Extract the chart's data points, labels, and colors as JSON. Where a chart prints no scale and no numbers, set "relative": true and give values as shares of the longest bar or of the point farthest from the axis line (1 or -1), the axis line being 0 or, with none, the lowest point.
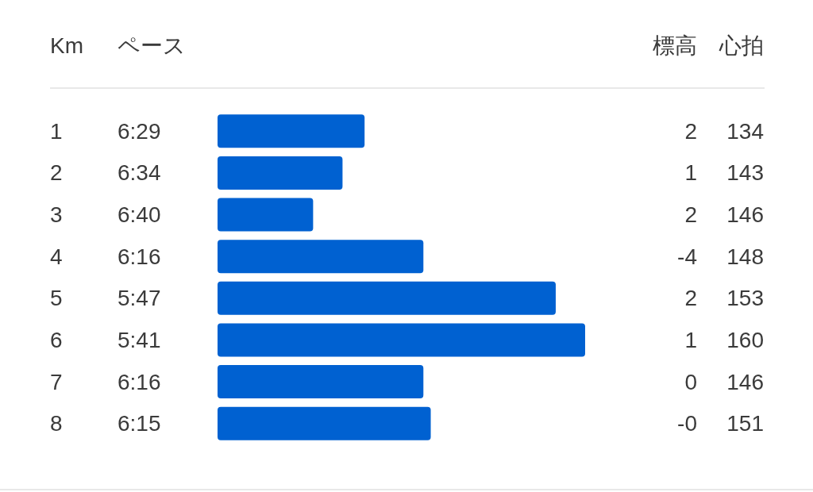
{
  "chart_data": {
    "type": "bar",
    "orientation": "horizontal",
    "relative": true,
    "ylabel": "Km",
    "categories": [
      "1",
      "2",
      "3",
      "4",
      "5",
      "6",
      "7",
      "8"
    ],
    "values": [
      0.4,
      0.34,
      0.26,
      0.56,
      0.92,
      1.0,
      0.56,
      0.58
    ],
    "color": "#0061d1",
    "annotations": [
      "ペース",
      "6:29",
      "6:34",
      "6:40",
      "6:16",
      "5:47",
      "5:41",
      "6:16",
      "6:15",
      "標高",
      "2",
      "1",
      "2",
      "-4",
      "2",
      "1",
      "0",
      "-0",
      "心拍",
      "134",
      "143",
      "146",
      "148",
      "153",
      "160",
      "146",
      "151"
    ]
  }
}
